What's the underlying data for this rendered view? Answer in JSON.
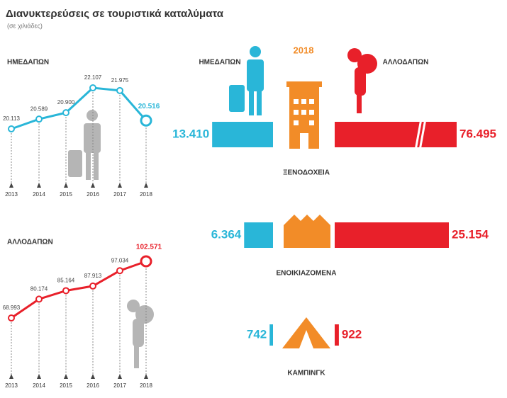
{
  "title": "Διανυκτερεύσεις σε τουριστικά καταλύματα",
  "subtitle": "(σε χιλιάδες)",
  "chart_data": [
    {
      "type": "line",
      "title": "ΗΜΕΔΑΠΩΝ",
      "color": "#29b6d8",
      "categories": [
        "2013",
        "2014",
        "2015",
        "2016",
        "2017",
        "2018"
      ],
      "values": [
        20113,
        20589,
        20900,
        22107,
        21975,
        20516
      ],
      "value_labels": [
        "20.113",
        "20.589",
        "20.900",
        "22.107",
        "21.975",
        "20.516"
      ]
    },
    {
      "type": "line",
      "title": "ΑΛΛΟΔΑΠΩΝ",
      "color": "#e8202a",
      "categories": [
        "2013",
        "2014",
        "2015",
        "2016",
        "2017",
        "2018"
      ],
      "values": [
        68993,
        80174,
        85164,
        87913,
        97034,
        102571
      ],
      "value_labels": [
        "68.993",
        "80.174",
        "85.164",
        "87.913",
        "97.034",
        "102.571"
      ]
    },
    {
      "type": "bar",
      "title": "2018",
      "categories": [
        "ΞΕΝΟΔΟΧΕΙΑ",
        "ΕΝΟΙΚΙΑΖΟΜΕΝΑ",
        "ΚΑΜΠΙΝΓΚ"
      ],
      "series": [
        {
          "name": "ΗΜΕΔΑΠΩΝ",
          "color": "#29b6d8",
          "values": [
            13410,
            6364,
            742
          ],
          "value_labels": [
            "13.410",
            "6.364",
            "742"
          ]
        },
        {
          "name": "ΑΛΛΟΔΑΠΩΝ",
          "color": "#e8202a",
          "values": [
            76495,
            25154,
            922
          ],
          "value_labels": [
            "76.495",
            "25.154",
            "922"
          ]
        }
      ]
    }
  ]
}
